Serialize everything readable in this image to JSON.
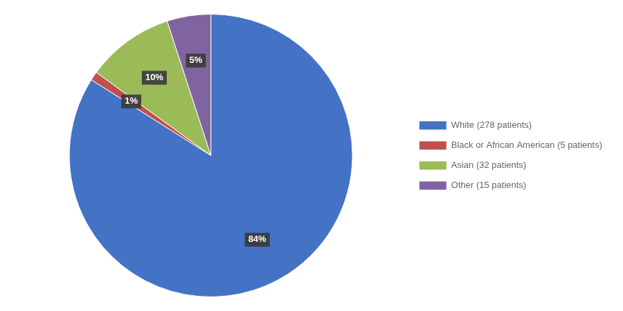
{
  "chart_data": {
    "type": "pie",
    "categories": [
      "White (278 patients)",
      "Black or African American (5 patients)",
      "Asian (32 patients)",
      "Other (15 patients)"
    ],
    "values": [
      84,
      1,
      10,
      5
    ],
    "value_labels": [
      "84%",
      "1%",
      "10%",
      "5%"
    ],
    "data_labels": true,
    "colors": [
      "#4472C4",
      "#C0504D",
      "#9BBB59",
      "#8064A2"
    ],
    "legend": "right"
  }
}
